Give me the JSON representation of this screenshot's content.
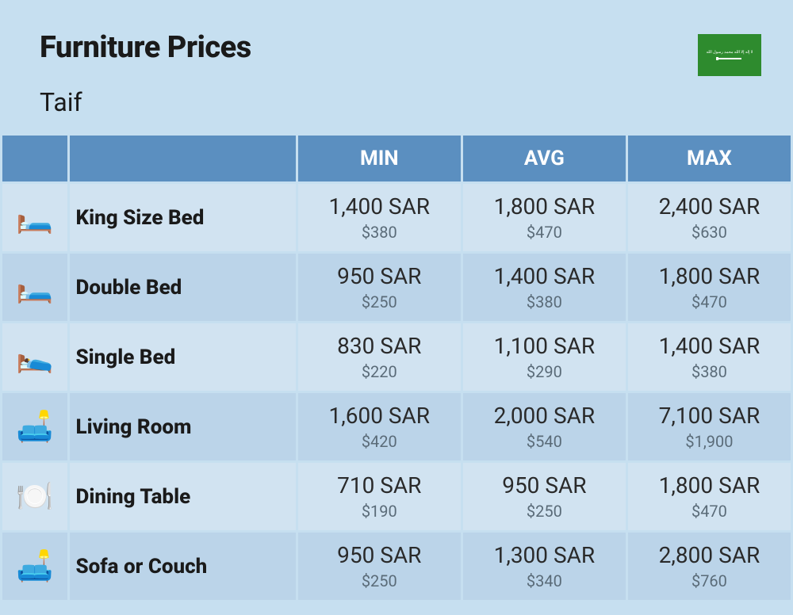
{
  "header": {
    "title": "Furniture Prices",
    "subtitle": "Taif",
    "flag_label": "Saudi Arabia"
  },
  "columns": [
    "MIN",
    "AVG",
    "MAX"
  ],
  "rows": [
    {
      "icon": "🛏️",
      "name": "King Size Bed",
      "min_sar": "1,400 SAR",
      "min_usd": "$380",
      "avg_sar": "1,800 SAR",
      "avg_usd": "$470",
      "max_sar": "2,400 SAR",
      "max_usd": "$630"
    },
    {
      "icon": "🛏️",
      "name": "Double Bed",
      "min_sar": "950 SAR",
      "min_usd": "$250",
      "avg_sar": "1,400 SAR",
      "avg_usd": "$380",
      "max_sar": "1,800 SAR",
      "max_usd": "$470"
    },
    {
      "icon": "🛌",
      "name": "Single Bed",
      "min_sar": "830 SAR",
      "min_usd": "$220",
      "avg_sar": "1,100 SAR",
      "avg_usd": "$290",
      "max_sar": "1,400 SAR",
      "max_usd": "$380"
    },
    {
      "icon": "🛋️",
      "name": "Living Room",
      "min_sar": "1,600 SAR",
      "min_usd": "$420",
      "avg_sar": "2,000 SAR",
      "avg_usd": "$540",
      "max_sar": "7,100 SAR",
      "max_usd": "$1,900"
    },
    {
      "icon": "🍽️",
      "name": "Dining Table",
      "min_sar": "710 SAR",
      "min_usd": "$190",
      "avg_sar": "950 SAR",
      "avg_usd": "$250",
      "max_sar": "1,800 SAR",
      "max_usd": "$470"
    },
    {
      "icon": "🛋️",
      "name": "Sofa or Couch",
      "min_sar": "950 SAR",
      "min_usd": "$250",
      "avg_sar": "1,300 SAR",
      "avg_usd": "$340",
      "max_sar": "2,800 SAR",
      "max_usd": "$760"
    }
  ],
  "styling": {
    "background_color": "#c6dff0",
    "header_bg": "#5b8fc0",
    "row_even_bg": "#d1e3f1",
    "row_odd_bg": "#bbd4e9",
    "title_color": "#1a1a1a",
    "price_color": "#2a2a2a",
    "usd_color": "#5a6b78",
    "flag_bg": "#2e8b2e"
  }
}
